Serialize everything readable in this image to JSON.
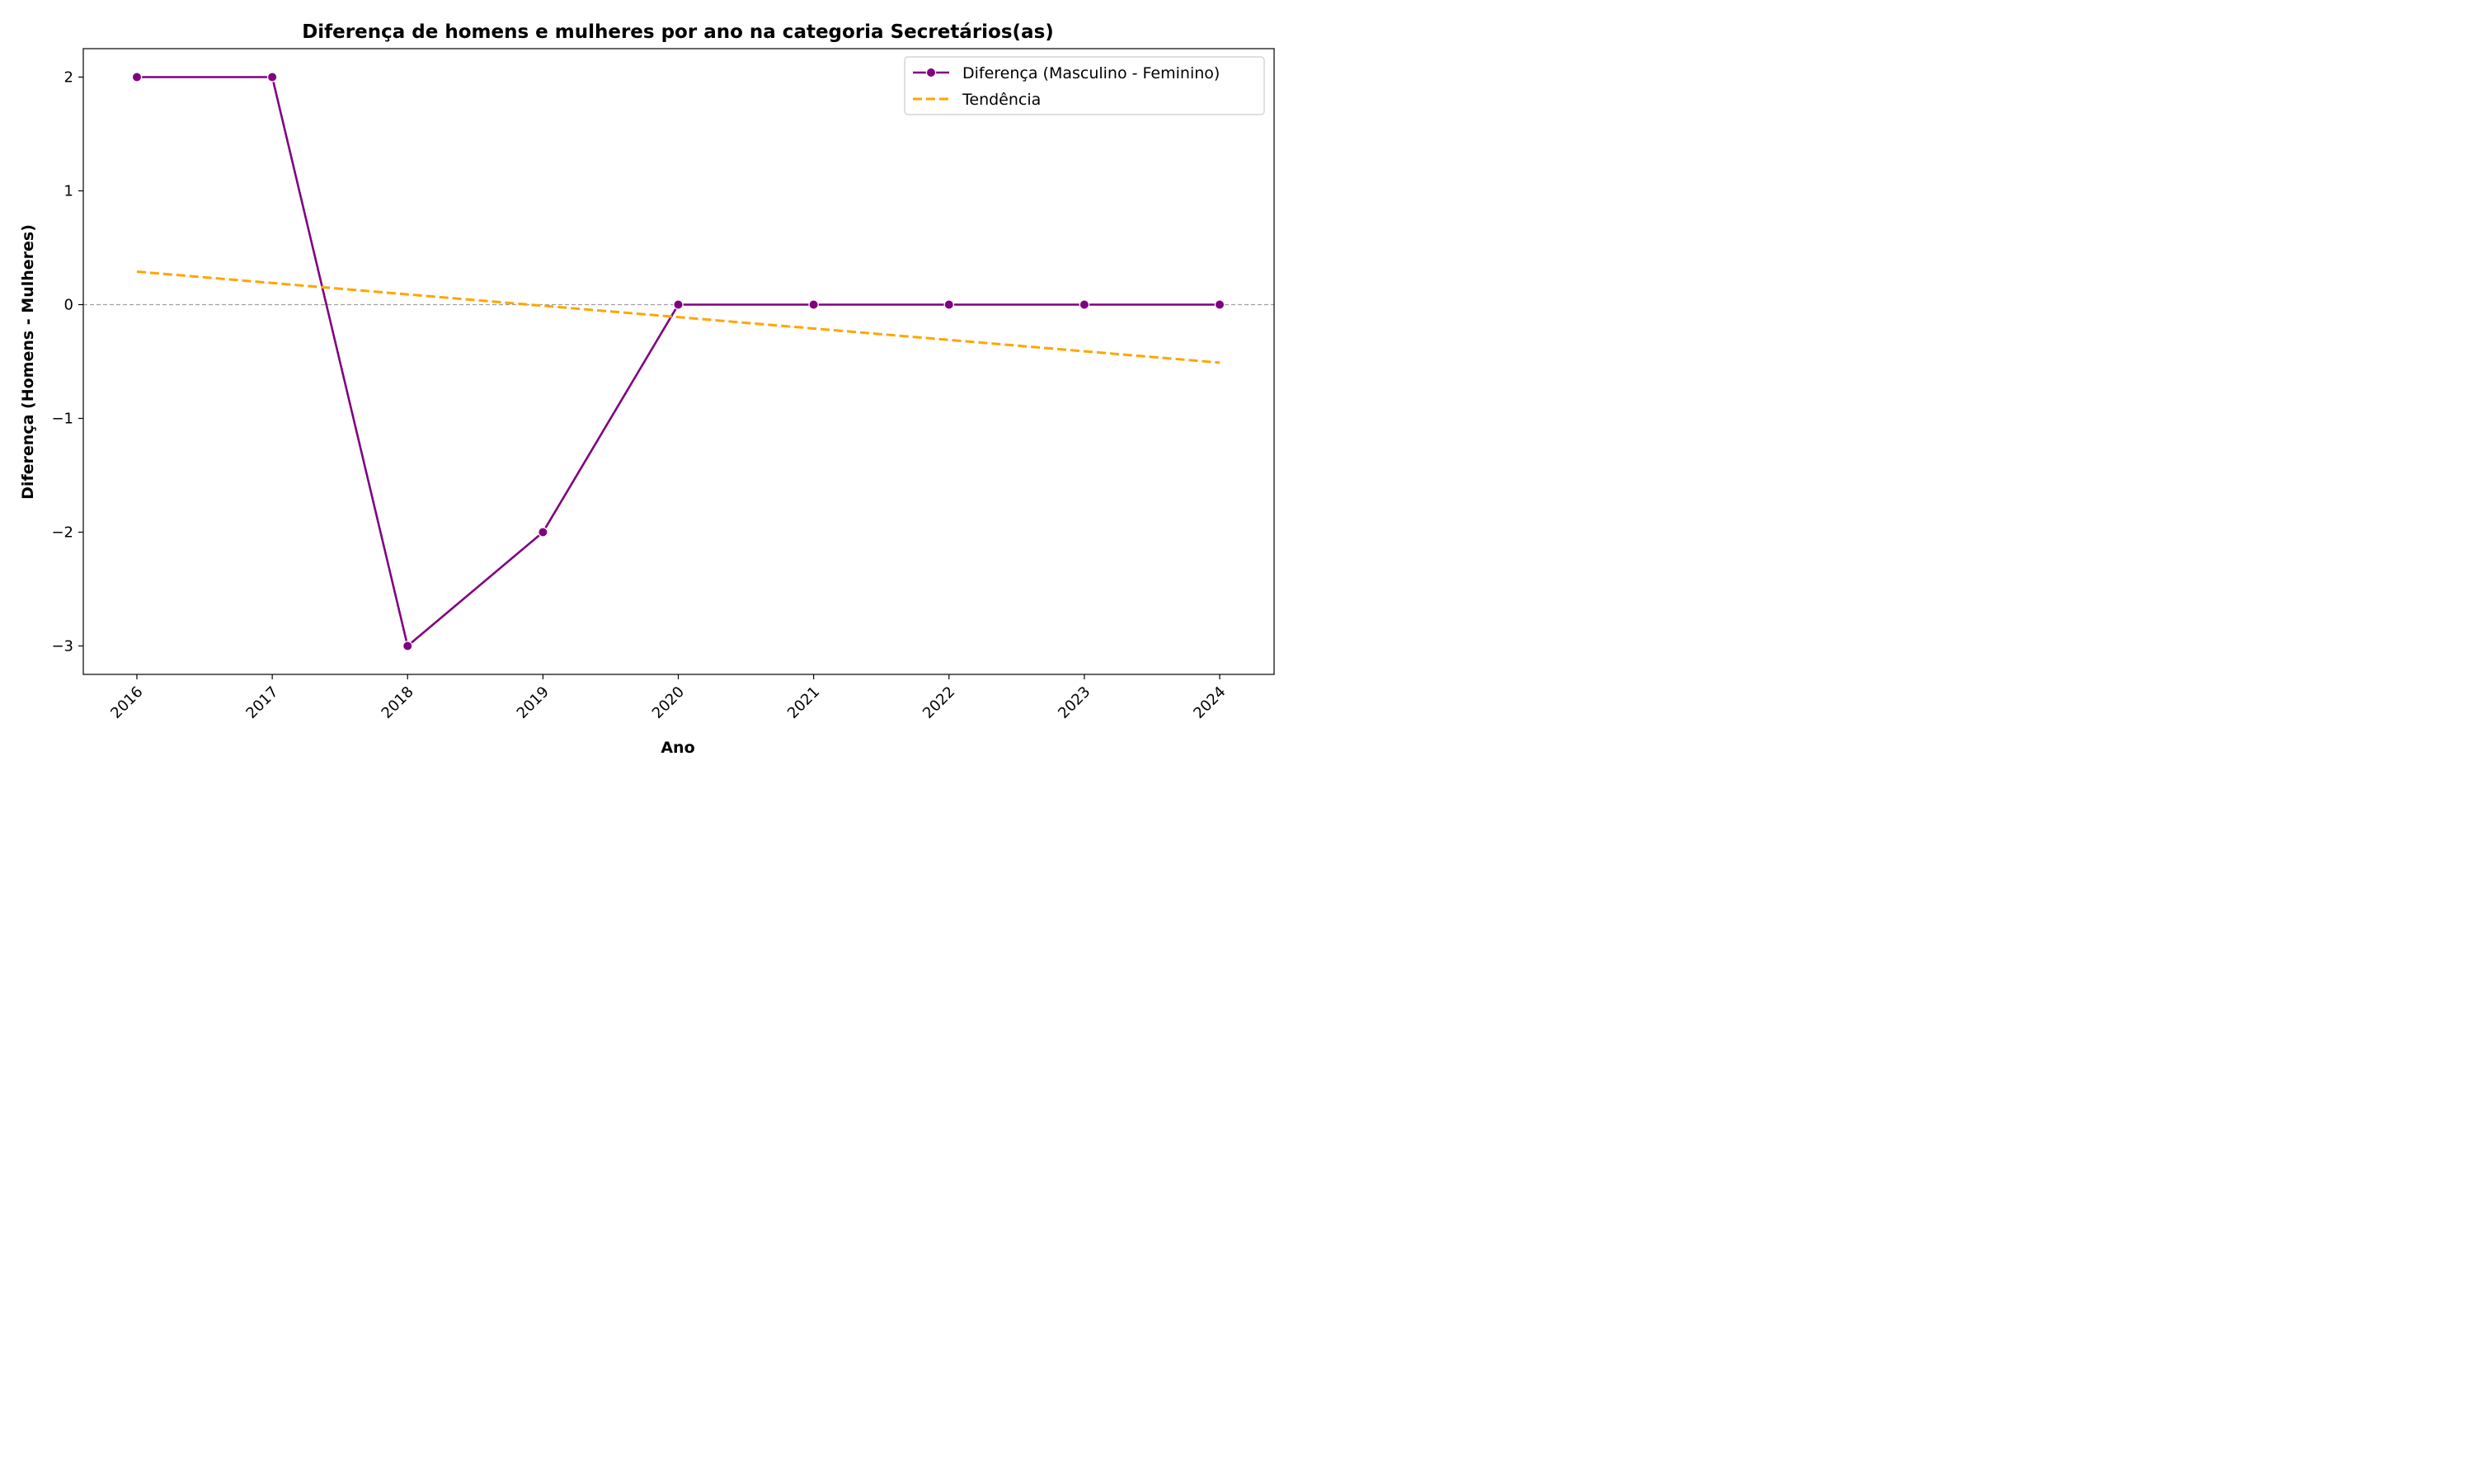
{
  "chart_data": {
    "type": "line",
    "title": "Diferença de homens e mulheres por ano na categoria Secretários(as)",
    "xlabel": "Ano",
    "ylabel": "Diferença (Homens - Mulheres)",
    "categories": [
      "2016",
      "2017",
      "2018",
      "2019",
      "2020",
      "2021",
      "2022",
      "2023",
      "2024"
    ],
    "y_ticks": [
      "2",
      "1",
      "0",
      "−1",
      "−2",
      "−3"
    ],
    "y_tick_values": [
      2,
      1,
      0,
      -1,
      -2,
      -3
    ],
    "ylim": [
      -3.25,
      2.25
    ],
    "grid": false,
    "legend_position": "top-right",
    "reference_line": {
      "y": 0,
      "color": "#a0a0a0",
      "style": "dashed"
    },
    "series": [
      {
        "name": "Diferença (Masculino - Feminino)",
        "values": [
          2,
          2,
          -3,
          -2,
          0,
          0,
          0,
          0,
          0
        ],
        "color": "#800080",
        "style": "solid",
        "markers": true
      },
      {
        "name": "Tendência",
        "values": [
          0.29,
          0.19,
          0.09,
          -0.01,
          -0.11,
          -0.21,
          -0.31,
          -0.41,
          -0.51
        ],
        "color": "#ffa500",
        "style": "dashed",
        "markers": false
      }
    ]
  }
}
